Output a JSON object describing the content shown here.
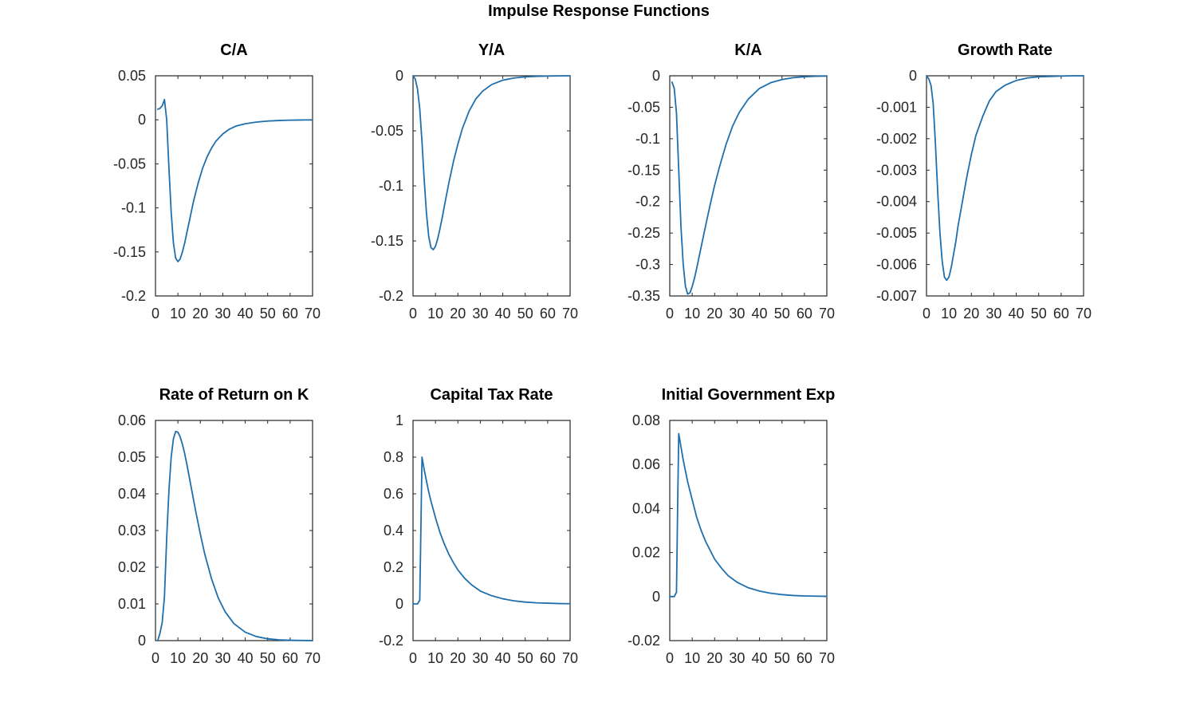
{
  "figure_title": "Impulse Response Functions",
  "colors": {
    "line": "#1f6fad",
    "axis": "#262626"
  },
  "chart_data": [
    {
      "type": "line",
      "title": "C/A",
      "xlim": [
        0,
        70
      ],
      "ylim": [
        -0.2,
        0.05
      ],
      "xticks": [
        0,
        10,
        20,
        30,
        40,
        50,
        60,
        70
      ],
      "xtick_labels": [
        "0",
        "10",
        "20",
        "30",
        "40",
        "50",
        "60",
        "70"
      ],
      "yticks": [
        -0.2,
        -0.15,
        -0.1,
        -0.05,
        0,
        0.05
      ],
      "ytick_labels": [
        "-0.2",
        "-0.15",
        "-0.1",
        "-0.05",
        "0",
        "0.05"
      ],
      "series": [
        {
          "x": [
            1,
            2,
            3,
            4,
            5,
            6,
            7,
            8,
            9,
            10,
            11,
            12,
            13,
            14,
            15,
            17,
            19,
            21,
            23,
            25,
            27,
            30,
            33,
            36,
            40,
            45,
            50,
            55,
            60,
            65,
            70
          ],
          "y": [
            0.012,
            0.013,
            0.016,
            0.023,
            0.0,
            -0.055,
            -0.105,
            -0.14,
            -0.157,
            -0.161,
            -0.158,
            -0.15,
            -0.14,
            -0.128,
            -0.116,
            -0.092,
            -0.072,
            -0.055,
            -0.042,
            -0.032,
            -0.024,
            -0.016,
            -0.0105,
            -0.007,
            -0.0045,
            -0.0025,
            -0.0014,
            -0.0008,
            -0.0004,
            -0.0002,
            -0.0001
          ]
        }
      ]
    },
    {
      "type": "line",
      "title": "Y/A",
      "xlim": [
        0,
        70
      ],
      "ylim": [
        -0.2,
        0
      ],
      "xticks": [
        0,
        10,
        20,
        30,
        40,
        50,
        60,
        70
      ],
      "xtick_labels": [
        "0",
        "10",
        "20",
        "30",
        "40",
        "50",
        "60",
        "70"
      ],
      "yticks": [
        -0.2,
        -0.15,
        -0.1,
        -0.05,
        0
      ],
      "ytick_labels": [
        "-0.2",
        "-0.15",
        "-0.1",
        "-0.05",
        "0"
      ],
      "series": [
        {
          "x": [
            0,
            1,
            2,
            3,
            4,
            5,
            6,
            7,
            8,
            9,
            10,
            11,
            12,
            13,
            14,
            16,
            18,
            20,
            22,
            25,
            28,
            31,
            35,
            40,
            45,
            50,
            55,
            60,
            65,
            70
          ],
          "y": [
            0,
            -0.003,
            -0.012,
            -0.03,
            -0.06,
            -0.095,
            -0.125,
            -0.146,
            -0.156,
            -0.158,
            -0.155,
            -0.148,
            -0.139,
            -0.129,
            -0.118,
            -0.097,
            -0.078,
            -0.062,
            -0.048,
            -0.032,
            -0.021,
            -0.014,
            -0.008,
            -0.004,
            -0.002,
            -0.001,
            -0.0005,
            -0.0003,
            -0.0001,
            0
          ]
        }
      ]
    },
    {
      "type": "line",
      "title": "K/A",
      "xlim": [
        0,
        70
      ],
      "ylim": [
        -0.35,
        0
      ],
      "xticks": [
        0,
        10,
        20,
        30,
        40,
        50,
        60,
        70
      ],
      "xtick_labels": [
        "0",
        "10",
        "20",
        "30",
        "40",
        "50",
        "60",
        "70"
      ],
      "yticks": [
        -0.35,
        -0.3,
        -0.25,
        -0.2,
        -0.15,
        -0.1,
        -0.05,
        0
      ],
      "ytick_labels": [
        "-0.35",
        "-0.3",
        "-0.25",
        "-0.2",
        "-0.15",
        "-0.1",
        "-0.05",
        "0"
      ],
      "series": [
        {
          "x": [
            1,
            2,
            3,
            4,
            5,
            6,
            7,
            8,
            9,
            10,
            11,
            12,
            14,
            16,
            18,
            20,
            22,
            25,
            28,
            31,
            35,
            40,
            45,
            50,
            55,
            60,
            65,
            70
          ],
          "y": [
            -0.01,
            -0.02,
            -0.06,
            -0.15,
            -0.24,
            -0.3,
            -0.335,
            -0.347,
            -0.345,
            -0.335,
            -0.322,
            -0.306,
            -0.272,
            -0.238,
            -0.205,
            -0.174,
            -0.147,
            -0.11,
            -0.08,
            -0.058,
            -0.037,
            -0.02,
            -0.011,
            -0.006,
            -0.003,
            -0.0015,
            -0.0008,
            -0.0004
          ]
        }
      ]
    },
    {
      "type": "line",
      "title": "Growth Rate",
      "xlim": [
        0,
        70
      ],
      "ylim": [
        -0.007,
        0
      ],
      "xticks": [
        0,
        10,
        20,
        30,
        40,
        50,
        60,
        70
      ],
      "xtick_labels": [
        "0",
        "10",
        "20",
        "30",
        "40",
        "50",
        "60",
        "70"
      ],
      "yticks": [
        -0.007,
        -0.006,
        -0.005,
        -0.004,
        -0.003,
        -0.002,
        -0.001,
        0
      ],
      "ytick_labels": [
        "-0.007",
        "-0.006",
        "-0.005",
        "-0.004",
        "-0.003",
        "-0.002",
        "-0.001",
        "0"
      ],
      "series": [
        {
          "x": [
            0,
            1,
            2,
            3,
            4,
            5,
            6,
            7,
            8,
            9,
            10,
            11,
            12,
            13,
            14,
            16,
            18,
            20,
            22,
            25,
            28,
            31,
            35,
            40,
            45,
            50,
            55,
            60,
            65,
            70
          ],
          "y": [
            0,
            -0.0001,
            -0.0003,
            -0.0009,
            -0.0022,
            -0.0037,
            -0.005,
            -0.0059,
            -0.0064,
            -0.0065,
            -0.0064,
            -0.0061,
            -0.0057,
            -0.0053,
            -0.0048,
            -0.004,
            -0.0032,
            -0.0025,
            -0.0019,
            -0.0013,
            -0.0008,
            -0.0005,
            -0.0003,
            -0.00015,
            -7e-05,
            -3e-05,
            -2e-05,
            -1e-05,
            0,
            0
          ]
        }
      ]
    },
    {
      "type": "line",
      "title": "Rate of Return on K",
      "xlim": [
        0,
        70
      ],
      "ylim": [
        0,
        0.06
      ],
      "xticks": [
        0,
        10,
        20,
        30,
        40,
        50,
        60,
        70
      ],
      "xtick_labels": [
        "0",
        "10",
        "20",
        "30",
        "40",
        "50",
        "60",
        "70"
      ],
      "yticks": [
        0,
        0.01,
        0.02,
        0.03,
        0.04,
        0.05,
        0.06
      ],
      "ytick_labels": [
        "0",
        "0.01",
        "0.02",
        "0.03",
        "0.04",
        "0.05",
        "0.06"
      ],
      "series": [
        {
          "x": [
            1,
            2,
            3,
            4,
            5,
            6,
            7,
            8,
            9,
            10,
            11,
            12,
            13,
            14,
            16,
            18,
            20,
            22,
            25,
            28,
            31,
            35,
            40,
            45,
            50,
            55,
            60,
            65,
            70
          ],
          "y": [
            0.0,
            0.002,
            0.005,
            0.012,
            0.028,
            0.041,
            0.05,
            0.055,
            0.057,
            0.0568,
            0.0555,
            0.0535,
            0.051,
            0.048,
            0.0415,
            0.035,
            0.029,
            0.0235,
            0.0168,
            0.0116,
            0.0079,
            0.0046,
            0.0023,
            0.0011,
            0.0005,
            0.0002,
            0.0001,
            5e-05,
            0.0
          ]
        }
      ]
    },
    {
      "type": "line",
      "title": "Capital Tax Rate",
      "xlim": [
        0,
        70
      ],
      "ylim": [
        -0.2,
        1
      ],
      "xticks": [
        0,
        10,
        20,
        30,
        40,
        50,
        60,
        70
      ],
      "xtick_labels": [
        "0",
        "10",
        "20",
        "30",
        "40",
        "50",
        "60",
        "70"
      ],
      "yticks": [
        -0.2,
        0,
        0.2,
        0.4,
        0.6,
        0.8,
        1
      ],
      "ytick_labels": [
        "-0.2",
        "0",
        "0.2",
        "0.4",
        "0.6",
        "0.8",
        "1"
      ],
      "series": [
        {
          "x": [
            0,
            1,
            2,
            3,
            3.5,
            4,
            5,
            6,
            7,
            8,
            10,
            12,
            14,
            16,
            18,
            20,
            23,
            26,
            30,
            35,
            40,
            45,
            50,
            55,
            60,
            65,
            70
          ],
          "y": [
            0,
            0,
            0,
            0.02,
            0.4,
            0.8,
            0.73,
            0.67,
            0.61,
            0.56,
            0.47,
            0.39,
            0.325,
            0.27,
            0.225,
            0.185,
            0.14,
            0.105,
            0.07,
            0.045,
            0.028,
            0.017,
            0.01,
            0.006,
            0.004,
            0.002,
            0.001
          ]
        }
      ]
    },
    {
      "type": "line",
      "title": "Initial Government Exp",
      "xlim": [
        0,
        70
      ],
      "ylim": [
        -0.02,
        0.08
      ],
      "xticks": [
        0,
        10,
        20,
        30,
        40,
        50,
        60,
        70
      ],
      "xtick_labels": [
        "0",
        "10",
        "20",
        "30",
        "40",
        "50",
        "60",
        "70"
      ],
      "yticks": [
        -0.02,
        0,
        0.02,
        0.04,
        0.06,
        0.08
      ],
      "ytick_labels": [
        "-0.02",
        "0",
        "0.02",
        "0.04",
        "0.06",
        "0.08"
      ],
      "series": [
        {
          "x": [
            0,
            1,
            2,
            3,
            3.5,
            4,
            5,
            6,
            7,
            8,
            10,
            12,
            14,
            16,
            18,
            20,
            23,
            26,
            30,
            35,
            40,
            45,
            50,
            55,
            60,
            65,
            70
          ],
          "y": [
            0,
            0,
            0,
            0.002,
            0.04,
            0.074,
            0.068,
            0.062,
            0.057,
            0.052,
            0.044,
            0.036,
            0.03,
            0.025,
            0.021,
            0.017,
            0.013,
            0.0095,
            0.0065,
            0.004,
            0.0025,
            0.0015,
            0.0009,
            0.0005,
            0.0003,
            0.0002,
            0.0001
          ]
        }
      ]
    }
  ]
}
